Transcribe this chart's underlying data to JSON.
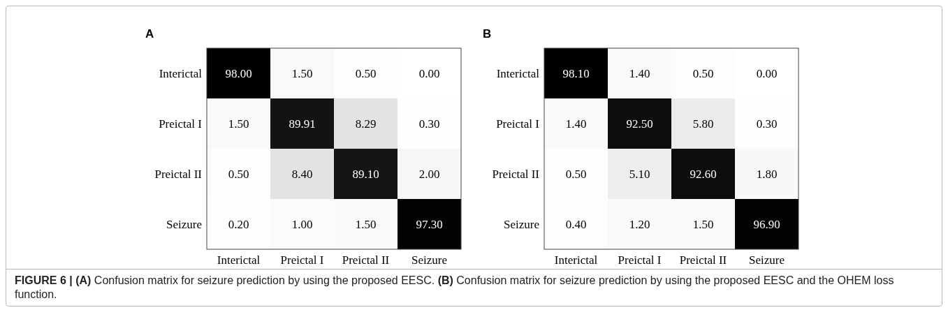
{
  "chart_data": [
    {
      "type": "heatmap",
      "title": "A",
      "categories": [
        "Interictal",
        "Preictal I",
        "Preictal II",
        "Seizure"
      ],
      "y_categories": [
        "Interictal",
        "Preictal I",
        "Preictal II",
        "Seizure"
      ],
      "cells": [
        [
          98.0,
          1.5,
          0.5,
          0.0
        ],
        [
          1.5,
          89.91,
          8.29,
          0.3
        ],
        [
          0.5,
          8.4,
          89.1,
          2.0
        ],
        [
          0.2,
          1.0,
          1.5,
          97.3
        ]
      ],
      "cell_labels": [
        [
          "98.00",
          "1.50",
          "0.50",
          "0.00"
        ],
        [
          "1.50",
          "89.91",
          "8.29",
          "0.30"
        ],
        [
          "0.50",
          "8.40",
          "89.10",
          "2.00"
        ],
        [
          "0.20",
          "1.00",
          "1.50",
          "97.30"
        ]
      ],
      "annotations": [
        "FIGURE 6 | (A) Confusion matrix for seizure prediction by using the proposed EESC. (B) Confusion matrix for seizure prediction by using the proposed EESC and the OHEM loss function."
      ]
    },
    {
      "type": "heatmap",
      "title": "B",
      "categories": [
        "Interictal",
        "Preictal I",
        "Preictal II",
        "Seizure"
      ],
      "y_categories": [
        "Interictal",
        "Preictal I",
        "Preictal II",
        "Seizure"
      ],
      "cells": [
        [
          98.1,
          1.4,
          0.5,
          0.0
        ],
        [
          1.4,
          92.5,
          5.8,
          0.3
        ],
        [
          0.5,
          5.1,
          92.6,
          1.8
        ],
        [
          0.4,
          1.2,
          1.5,
          96.9
        ]
      ],
      "cell_labels": [
        [
          "98.10",
          "1.40",
          "0.50",
          "0.00"
        ],
        [
          "1.40",
          "92.50",
          "5.80",
          "0.30"
        ],
        [
          "0.50",
          "5.10",
          "92.60",
          "1.80"
        ],
        [
          "0.40",
          "1.20",
          "1.50",
          "96.90"
        ]
      ]
    }
  ]
}
